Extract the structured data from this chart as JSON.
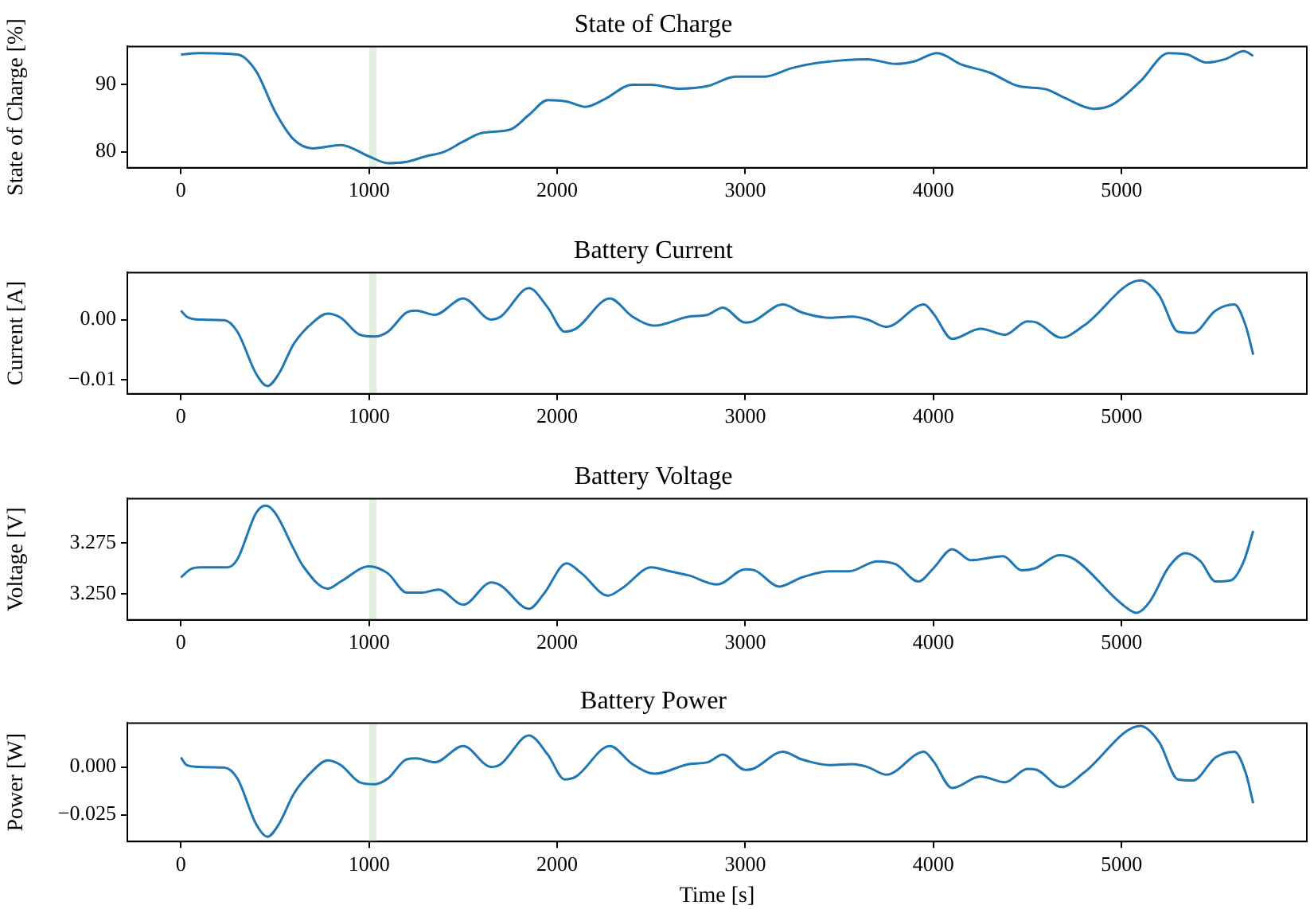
{
  "chart_data": [
    {
      "type": "line",
      "title": "State of Charge",
      "ylabel": "State of Charge [%]",
      "xlim": [
        -285,
        5985
      ],
      "xticks": [
        0,
        1000,
        2000,
        3000,
        4000,
        5000
      ],
      "ylim": [
        77.6,
        95.7
      ],
      "yticks": [
        80,
        90
      ],
      "bands": [
        {
          "axis": "x",
          "from": 1000,
          "to": 1040,
          "color": "#e2f0df"
        }
      ],
      "series": [
        {
          "color": "#1f77b4",
          "x": [
            0,
            100,
            300,
            400,
            500,
            600,
            700,
            850,
            1000,
            1100,
            1200,
            1300,
            1400,
            1500,
            1600,
            1750,
            1850,
            1950,
            2050,
            2150,
            2250,
            2400,
            2500,
            2650,
            2800,
            2950,
            3100,
            3250,
            3400,
            3650,
            3800,
            3900,
            4020,
            4150,
            4300,
            4450,
            4600,
            4700,
            4850,
            4950,
            5100,
            5250,
            5350,
            5450,
            5550,
            5650,
            5700
          ],
          "values": [
            94.5,
            94.7,
            94.5,
            92,
            86,
            81.8,
            80.5,
            81,
            79.3,
            78.3,
            78.5,
            79.3,
            80,
            81.5,
            82.8,
            83.3,
            85.5,
            87.7,
            87.5,
            86.7,
            87.8,
            90,
            90,
            89.4,
            89.8,
            91.2,
            91.2,
            92.5,
            93.3,
            93.8,
            93.1,
            93.5,
            94.7,
            93,
            91.8,
            89.8,
            89.3,
            88,
            86.4,
            87,
            90.5,
            94.7,
            94.5,
            93.3,
            93.8,
            95,
            94.3
          ]
        }
      ]
    },
    {
      "type": "line",
      "title": "Battery Current",
      "ylabel": "Current [A]",
      "xlim": [
        -285,
        5985
      ],
      "xticks": [
        0,
        1000,
        2000,
        3000,
        4000,
        5000
      ],
      "ylim": [
        -0.0123,
        0.0078
      ],
      "yticks": [
        {
          "value": -0.01,
          "label": "−0.01"
        },
        {
          "value": 0,
          "label": "0.00"
        }
      ],
      "bands": [
        {
          "axis": "x",
          "from": 1000,
          "to": 1040,
          "color": "#e2f0df"
        }
      ],
      "series": [
        {
          "color": "#1f77b4",
          "x": [
            0,
            30,
            100,
            230,
            300,
            400,
            460,
            520,
            600,
            700,
            780,
            850,
            950,
            1030,
            1100,
            1200,
            1250,
            1350,
            1500,
            1650,
            1700,
            1850,
            1950,
            2040,
            2100,
            2280,
            2400,
            2520,
            2700,
            2800,
            2880,
            3000,
            3040,
            3200,
            3300,
            3450,
            3570,
            3650,
            3750,
            3950,
            4000,
            4100,
            4250,
            4380,
            4500,
            4550,
            4680,
            4800,
            5100,
            5200,
            5300,
            5380,
            5500,
            5600,
            5660,
            5700
          ],
          "values": [
            0.0015,
            0.0005,
            0,
            -0.0001,
            -0.002,
            -0.009,
            -0.011,
            -0.009,
            -0.004,
            -0.0005,
            0.001,
            0.0003,
            -0.0025,
            -0.0028,
            -0.002,
            0.0012,
            0.0015,
            0.0008,
            0.0035,
            0,
            0.0005,
            0.0052,
            0.002,
            -0.002,
            -0.0015,
            0.0035,
            0.0005,
            -0.001,
            0.0005,
            0.0008,
            0.002,
            -0.0005,
            -0.0003,
            0.0025,
            0.0012,
            0.0003,
            0.0005,
            0,
            -0.0012,
            0.0025,
            0.001,
            -0.0032,
            -0.0015,
            -0.0025,
            -0.0003,
            -0.0005,
            -0.003,
            -0.001,
            0.0065,
            0.004,
            -0.002,
            -0.0022,
            0.0015,
            0.0025,
            -0.001,
            -0.0058
          ]
        }
      ]
    },
    {
      "type": "line",
      "title": "Battery Voltage",
      "ylabel": "Voltage [V]",
      "xlim": [
        -285,
        5985
      ],
      "xticks": [
        0,
        1000,
        2000,
        3000,
        4000,
        5000
      ],
      "ylim": [
        3.237,
        3.297
      ],
      "yticks": [
        {
          "value": 3.25,
          "label": "3.250"
        },
        {
          "value": 3.275,
          "label": "3.275"
        }
      ],
      "bands": [
        {
          "axis": "x",
          "from": 1000,
          "to": 1040,
          "color": "#e2f0df"
        }
      ],
      "series": [
        {
          "color": "#1f77b4",
          "x": [
            0,
            50,
            100,
            250,
            300,
            400,
            450,
            500,
            600,
            650,
            780,
            850,
            1000,
            1100,
            1200,
            1280,
            1370,
            1500,
            1650,
            1700,
            1850,
            1930,
            2050,
            2130,
            2270,
            2350,
            2500,
            2600,
            2700,
            2850,
            3000,
            3050,
            3180,
            3300,
            3450,
            3550,
            3700,
            3800,
            3920,
            4000,
            4100,
            4200,
            4370,
            4470,
            4540,
            4670,
            4750,
            5000,
            5080,
            5150,
            5250,
            5340,
            5420,
            5500,
            5580,
            5650,
            5700
          ],
          "values": [
            3.258,
            3.262,
            3.263,
            3.263,
            3.267,
            3.29,
            3.2935,
            3.29,
            3.272,
            3.2635,
            3.2525,
            3.256,
            3.2635,
            3.26,
            3.2505,
            3.2505,
            3.252,
            3.2445,
            3.2555,
            3.254,
            3.2425,
            3.25,
            3.265,
            3.26,
            3.249,
            3.253,
            3.263,
            3.261,
            3.259,
            3.2545,
            3.262,
            3.2615,
            3.2535,
            3.258,
            3.261,
            3.261,
            3.266,
            3.2645,
            3.256,
            3.2625,
            3.272,
            3.2665,
            3.2685,
            3.2615,
            3.2625,
            3.269,
            3.267,
            3.245,
            3.2405,
            3.246,
            3.263,
            3.27,
            3.266,
            3.256,
            3.2565,
            3.266,
            3.281
          ]
        }
      ]
    },
    {
      "type": "line",
      "title": "Battery Power",
      "xlabel": "Time [s]",
      "ylabel": "Power [W]",
      "xlim": [
        -285,
        5985
      ],
      "xticks": [
        0,
        1000,
        2000,
        3000,
        4000,
        5000
      ],
      "ylim": [
        -0.039,
        0.023
      ],
      "yticks": [
        {
          "value": -0.025,
          "label": "−0.025"
        },
        {
          "value": 0,
          "label": "0.000"
        }
      ],
      "bands": [
        {
          "axis": "x",
          "from": 1000,
          "to": 1040,
          "color": "#e2f0df"
        }
      ],
      "series": [
        {
          "color": "#1f77b4",
          "x": [
            0,
            30,
            100,
            230,
            300,
            400,
            460,
            520,
            600,
            700,
            780,
            850,
            950,
            1030,
            1100,
            1200,
            1250,
            1350,
            1500,
            1650,
            1700,
            1850,
            1950,
            2040,
            2100,
            2280,
            2400,
            2520,
            2700,
            2800,
            2880,
            3000,
            3040,
            3200,
            3300,
            3450,
            3570,
            3650,
            3750,
            3950,
            4000,
            4100,
            4250,
            4380,
            4500,
            4550,
            4680,
            4800,
            5100,
            5200,
            5300,
            5380,
            5500,
            5600,
            5660,
            5700
          ],
          "values": [
            0.005,
            0.001,
            0,
            -0.0003,
            -0.006,
            -0.03,
            -0.0365,
            -0.03,
            -0.014,
            -0.002,
            0.0035,
            0.001,
            -0.008,
            -0.009,
            -0.006,
            0.004,
            0.0045,
            0.0025,
            0.011,
            0,
            0.0015,
            0.0165,
            0.0065,
            -0.0065,
            -0.005,
            0.011,
            0.0015,
            -0.0035,
            0.0015,
            0.0025,
            0.0065,
            -0.0015,
            -0.001,
            0.008,
            0.004,
            0.001,
            0.0015,
            0,
            -0.004,
            0.008,
            0.003,
            -0.011,
            -0.005,
            -0.008,
            -0.001,
            -0.0015,
            -0.0105,
            -0.003,
            0.0215,
            0.013,
            -0.0065,
            -0.007,
            0.005,
            0.008,
            -0.003,
            -0.019
          ]
        }
      ]
    }
  ]
}
